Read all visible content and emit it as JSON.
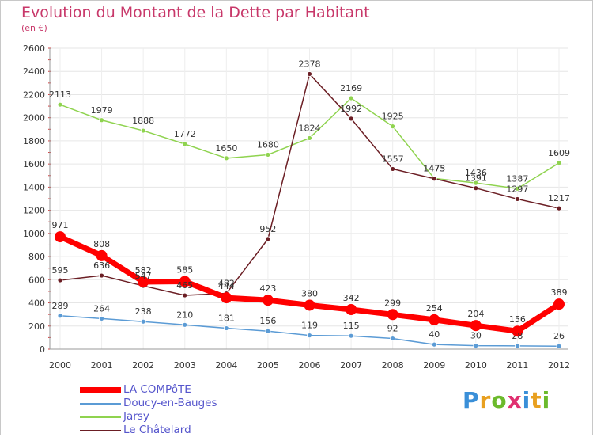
{
  "title": "Evolution du Montant de la Dette par Habitant",
  "unit_label": "(en €)",
  "logo_letters": [
    {
      "ch": "P",
      "color": "#3a8fd8"
    },
    {
      "ch": "r",
      "color": "#e8a020"
    },
    {
      "ch": "o",
      "color": "#6cba2c"
    },
    {
      "ch": "x",
      "color": "#e03070"
    },
    {
      "ch": "i",
      "color": "#3a8fd8"
    },
    {
      "ch": "t",
      "color": "#e8a020"
    },
    {
      "ch": "i",
      "color": "#6cba2c"
    }
  ],
  "chart_data": {
    "type": "line",
    "title": "Evolution du Montant de la Dette par Habitant",
    "ylabel": "(en €)",
    "xlabel": "",
    "x": [
      "2000",
      "2001",
      "2002",
      "2003",
      "2004",
      "2005",
      "2006",
      "2007",
      "2008",
      "2009",
      "2010",
      "2011",
      "2012"
    ],
    "ylim": [
      0,
      2600
    ],
    "yticks": [
      "0",
      "200",
      "400",
      "600",
      "800",
      "1000",
      "1200",
      "1400",
      "1600",
      "1800",
      "2000",
      "2200",
      "2400",
      "2600"
    ],
    "grid": true,
    "legend_position": "bottom-left",
    "series": [
      {
        "name": "LA COMPôTE",
        "color": "#ff0000",
        "values": [
          971,
          808,
          582,
          585,
          444,
          423,
          380,
          342,
          299,
          254,
          204,
          156,
          389
        ],
        "labels": [
          "971",
          "808",
          "582",
          "585",
          "444",
          "423",
          "380",
          "342",
          "299",
          "254",
          "204",
          "156",
          "389"
        ]
      },
      {
        "name": "Doucy-en-Bauges",
        "color": "#5b9bd5",
        "values": [
          289,
          264,
          238,
          210,
          181,
          156,
          119,
          115,
          92,
          40,
          30,
          28,
          26
        ],
        "labels": [
          "289",
          "264",
          "238",
          "210",
          "181",
          "156",
          "119",
          "115",
          "92",
          "40",
          "30",
          "28",
          "26"
        ]
      },
      {
        "name": "Jarsy",
        "color": "#8fd34f",
        "values": [
          2113,
          1979,
          1888,
          1772,
          1650,
          1680,
          1824,
          2169,
          1925,
          1475,
          1436,
          1387,
          1609
        ],
        "labels": [
          "2113",
          "1979",
          "1888",
          "1772",
          "1650",
          "1680",
          "1824",
          "2169",
          "1925",
          "1475",
          "1436",
          "1387",
          "1609"
        ]
      },
      {
        "name": "Le Châtelard",
        "color": "#6b1e24",
        "values": [
          595,
          636,
          547,
          465,
          482,
          952,
          2378,
          1992,
          1557,
          1473,
          1391,
          1297,
          1217
        ],
        "labels": [
          "595",
          "636",
          "547",
          "465",
          "482",
          "952",
          "2378",
          "1992",
          "1557",
          "1473",
          "1391",
          "1297",
          "1217"
        ]
      }
    ]
  }
}
